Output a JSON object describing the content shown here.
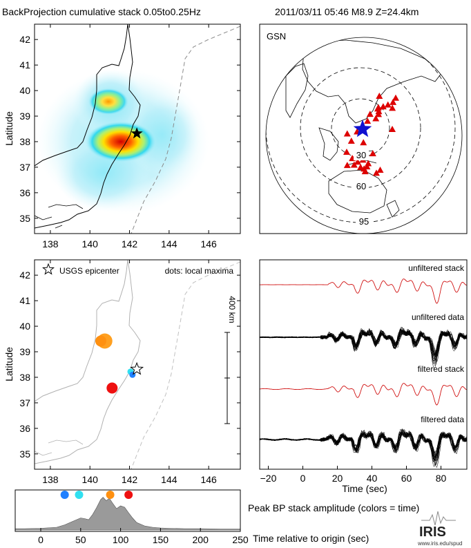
{
  "header": {
    "title": "BackProjection cumulative stack 0.05to0.25Hz",
    "event": "2011/03/11 05:46   M8.9   Z=24.4km"
  },
  "colors": {
    "star_black": "#000000",
    "star_blue": "#1010d0",
    "station": "#dd0000",
    "trace_filtered": "#d01010",
    "stack_fill": "#9a9a9a",
    "coast": "#000000",
    "coast_gray": "#b0b0b0",
    "trench": "#8a8a8a"
  },
  "chart_data": [
    {
      "id": "map-stack",
      "type": "heatmap",
      "ylabel": "Latitude",
      "xlim": [
        137.2,
        147.6
      ],
      "ylim": [
        34.4,
        42.6
      ],
      "x_ticks": [
        "138",
        "140",
        "142",
        "144",
        "146"
      ],
      "y_ticks": [
        "35",
        "36",
        "37",
        "38",
        "39",
        "40",
        "41",
        "42"
      ],
      "epicenter": {
        "lon": 142.37,
        "lat": 38.32,
        "marker": "black-star"
      },
      "hotspots": [
        {
          "lon": 141.8,
          "lat": 37.8,
          "peak": "red"
        },
        {
          "lon": 140.9,
          "lat": 39.4,
          "peak": "orange"
        }
      ]
    },
    {
      "id": "gsn-map",
      "type": "scatter",
      "label": "GSN",
      "ring_labels": [
        "30",
        "60",
        "95"
      ],
      "epicenter_marker": "blue-star",
      "stations": [
        {
          "lon": -96,
          "lat": 60
        },
        {
          "lon": -140,
          "lat": 62
        },
        {
          "lon": -120,
          "lat": 48
        },
        {
          "lon": -152,
          "lat": 58
        },
        {
          "lon": -155,
          "lat": 20
        },
        {
          "lon": -160,
          "lat": 55
        },
        {
          "lon": -130,
          "lat": 55
        },
        {
          "lon": -110,
          "lat": 40
        },
        {
          "lon": -100,
          "lat": 35
        },
        {
          "lon": -123,
          "lat": 40
        },
        {
          "lon": -146,
          "lat": 62
        },
        {
          "lon": -175,
          "lat": 52
        },
        {
          "lon": 158,
          "lat": 53
        },
        {
          "lon": 175,
          "lat": 64
        },
        {
          "lon": 144,
          "lat": 13
        },
        {
          "lon": 130,
          "lat": 33
        },
        {
          "lon": 110,
          "lat": 25
        },
        {
          "lon": 121,
          "lat": 14
        },
        {
          "lon": 115,
          "lat": -8
        },
        {
          "lon": 147,
          "lat": -6
        },
        {
          "lon": 131,
          "lat": -12
        },
        {
          "lon": 116,
          "lat": -32
        },
        {
          "lon": 134,
          "lat": -24
        },
        {
          "lon": 145,
          "lat": -37
        },
        {
          "lon": 147,
          "lat": -42
        },
        {
          "lon": 139,
          "lat": -34
        },
        {
          "lon": 150,
          "lat": -33
        },
        {
          "lon": 174,
          "lat": -41
        },
        {
          "lon": 168,
          "lat": -46
        },
        {
          "lon": 160,
          "lat": -9
        },
        {
          "lon": 152,
          "lat": -27
        },
        {
          "lon": 128,
          "lat": -30
        },
        {
          "lon": 143,
          "lat": -20
        },
        {
          "lon": 125,
          "lat": -18
        }
      ]
    },
    {
      "id": "map-maxima",
      "type": "scatter",
      "ylabel": "Latitude",
      "xlim": [
        137.2,
        147.6
      ],
      "ylim": [
        34.4,
        42.6
      ],
      "x_ticks": [
        "138",
        "140",
        "142",
        "144",
        "146"
      ],
      "y_ticks": [
        "35",
        "36",
        "37",
        "38",
        "39",
        "40",
        "41",
        "42"
      ],
      "legend_epicenter": "USGS epicenter",
      "legend_dots": "dots: local maxima",
      "scale_bar": "400 km",
      "epicenter": {
        "lon": 142.37,
        "lat": 38.32
      },
      "maxima": [
        {
          "lon": 140.75,
          "lat": 39.42,
          "size": 3,
          "color": "#ffa020",
          "time": 80
        },
        {
          "lon": 140.55,
          "lat": 39.42,
          "size": 2,
          "color": "#ff9010",
          "time": 75
        },
        {
          "lon": 141.12,
          "lat": 37.58,
          "size": 2,
          "color": "#ee1010",
          "time": 105
        },
        {
          "lon": 142.05,
          "lat": 38.22,
          "size": 1,
          "color": "#30e0f0",
          "time": 45
        },
        {
          "lon": 142.15,
          "lat": 38.1,
          "size": 1,
          "color": "#2080ff",
          "time": 30
        }
      ]
    },
    {
      "id": "waveforms",
      "type": "line",
      "xlabel": "Time (sec)",
      "xlim": [
        -25,
        95
      ],
      "x_ticks": [
        "−20",
        "0",
        "20",
        "40",
        "60",
        "80"
      ],
      "series": [
        {
          "name": "unfiltered stack"
        },
        {
          "name": "unfiltered data"
        },
        {
          "name": "filtered stack"
        },
        {
          "name": "filtered data"
        }
      ]
    },
    {
      "id": "peak-stack",
      "type": "area",
      "caption": "Peak BP stack amplitude (colors = time)",
      "xlabel": "Time relative to origin (sec)",
      "xlim": [
        -32,
        250
      ],
      "x_ticks": [
        "0",
        "50",
        "100",
        "150",
        "200",
        "250"
      ],
      "x": [
        -32,
        -20,
        0,
        20,
        30,
        40,
        50,
        55,
        60,
        65,
        70,
        75,
        78,
        82,
        86,
        90,
        95,
        100,
        105,
        110,
        115,
        120,
        130,
        140,
        150,
        160,
        180,
        200,
        225,
        250
      ],
      "values": [
        0.04,
        0.04,
        0.05,
        0.08,
        0.15,
        0.25,
        0.35,
        0.33,
        0.3,
        0.45,
        0.65,
        0.88,
        0.95,
        0.85,
        0.92,
        0.78,
        0.62,
        0.7,
        0.66,
        0.5,
        0.35,
        0.22,
        0.12,
        0.08,
        0.06,
        0.05,
        0.04,
        0.04,
        0.03,
        0.03
      ],
      "markers": [
        {
          "time": 30,
          "color": "#2080ff"
        },
        {
          "time": 48,
          "color": "#30e0f0"
        },
        {
          "time": 87,
          "color": "#ff9010"
        },
        {
          "time": 110,
          "color": "#ee1010"
        }
      ]
    }
  ],
  "branding": {
    "logo": "IRIS",
    "url": "www.iris.edu/spud"
  }
}
